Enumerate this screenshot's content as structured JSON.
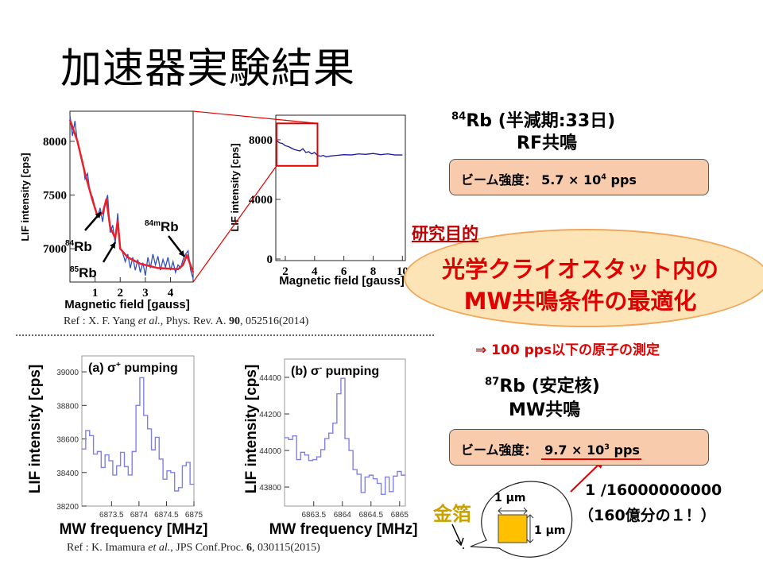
{
  "title": "加速器実験結果",
  "top_left_chart": {
    "type": "line",
    "xlabel": "Magnetic field [gauss]",
    "ylabel": "LIF intensity   [cps]",
    "xlim": [
      0,
      4.9
    ],
    "ylim": [
      6690,
      8280
    ],
    "x_ticks": [
      "1",
      "2",
      "3",
      "4"
    ],
    "x_tick_values": [
      1,
      2,
      3,
      4
    ],
    "y_ticks": [
      "7000",
      "7500",
      "8000"
    ],
    "y_tick_values": [
      7000,
      7500,
      8000
    ],
    "data_color": "#3050c0",
    "fit_color": "#e8202a",
    "data_x": [
      0,
      0.1,
      0.2,
      0.3,
      0.4,
      0.5,
      0.6,
      0.7,
      0.8,
      0.9,
      1.0,
      1.1,
      1.2,
      1.3,
      1.4,
      1.5,
      1.6,
      1.7,
      1.8,
      1.9,
      2.0,
      2.1,
      2.2,
      2.3,
      2.4,
      2.5,
      2.6,
      2.7,
      2.8,
      2.9,
      3.0,
      3.1,
      3.2,
      3.3,
      3.4,
      3.5,
      3.6,
      3.7,
      3.8,
      3.9,
      4.0,
      4.1,
      4.2,
      4.3,
      4.4,
      4.5,
      4.6,
      4.7,
      4.8,
      4.9
    ],
    "data_y": [
      8240,
      8050,
      8190,
      7980,
      7900,
      7820,
      7650,
      7700,
      7520,
      7480,
      7380,
      7300,
      7380,
      7250,
      7420,
      7500,
      7150,
      7220,
      7050,
      7330,
      7010,
      6960,
      6880,
      6950,
      6820,
      6920,
      6800,
      6900,
      6780,
      6870,
      6750,
      6920,
      6820,
      6950,
      6850,
      6930,
      6800,
      6900,
      6830,
      6920,
      6800,
      6880,
      6780,
      6850,
      6820,
      6900,
      6950,
      6980,
      6800,
      6720
    ],
    "fit_x": [
      0,
      0.3,
      0.6,
      0.9,
      1.1,
      1.3,
      1.45,
      1.6,
      1.8,
      1.9,
      2.0,
      2.3,
      2.8,
      3.5,
      4.3,
      4.5,
      4.65,
      4.9
    ],
    "fit_y": [
      8200,
      8000,
      7700,
      7450,
      7300,
      7330,
      7460,
      7200,
      7100,
      7260,
      7000,
      6920,
      6860,
      6820,
      6810,
      6850,
      6940,
      6780
    ],
    "annotations": [
      {
        "sup": "84",
        "text": "Rb"
      },
      {
        "sup": "85",
        "text": "Rb"
      },
      {
        "sup": "84m",
        "text": "Rb"
      }
    ]
  },
  "top_right_chart": {
    "type": "line",
    "xlabel": "Magnetic field [gauss]",
    "ylabel": "LIF intensity   [cps]",
    "xlim": [
      1.35,
      10.2
    ],
    "ylim": [
      -107,
      9650
    ],
    "x_ticks": [
      "2",
      "4",
      "6",
      "8",
      "10"
    ],
    "x_tick_values": [
      2,
      4,
      6,
      8,
      10
    ],
    "y_ticks": [
      "0",
      "4000",
      "8000"
    ],
    "y_tick_values": [
      0,
      4000,
      8000
    ],
    "data_color": "#1a1aa0",
    "data_x": [
      1.4,
      1.6,
      1.8,
      2.0,
      2.2,
      2.4,
      2.6,
      2.8,
      3.0,
      3.2,
      3.4,
      3.6,
      3.8,
      4.0,
      4.2,
      4.4,
      4.6,
      4.8,
      5.0,
      5.5,
      6.0,
      6.5,
      7.0,
      7.5,
      8.0,
      8.5,
      9.0,
      9.5,
      10.0
    ],
    "data_y": [
      7950,
      7800,
      7750,
      7600,
      7550,
      7450,
      7350,
      7300,
      7250,
      7400,
      7150,
      7200,
      7050,
      7150,
      6950,
      6900,
      6950,
      6850,
      6900,
      6950,
      7000,
      6980,
      7050,
      7020,
      7080,
      7000,
      7050,
      6980,
      6980
    ],
    "zoom_box_x": [
      1.4,
      4.2
    ],
    "zoom_box_y": [
      6250,
      9100
    ]
  },
  "top_ref": {
    "prefix": "Ref : X. F. Yang ",
    "etal": "et al.",
    "mid": ", Phys. Rev. A. ",
    "vol": "90",
    "suffix": ", 052516(2014)"
  },
  "bottom_left_chart": {
    "type": "line",
    "label_prefix": "(a) σ",
    "label_sup": "+",
    "label_suffix": " pumping",
    "xlabel": "MW frequency [MHz]",
    "ylabel": "LIF intensity   [cps]",
    "xlim": [
      6872.96,
      6875.0
    ],
    "ylim": [
      38200,
      39095
    ],
    "x_ticks": [
      "6873.5",
      "6874",
      "6874.5",
      "6875"
    ],
    "x_tick_values": [
      6873.5,
      6874,
      6874.5,
      6875
    ],
    "y_ticks": [
      "38200",
      "38400",
      "38600",
      "38800",
      "39000"
    ],
    "y_tick_values": [
      38200,
      38400,
      38600,
      38800,
      39000
    ],
    "data_color": "#8080e8",
    "hist_values": [
      38540,
      38650,
      38620,
      38510,
      38525,
      38430,
      38505,
      38470,
      38385,
      38440,
      38520,
      38435,
      38385,
      38525,
      38800,
      38965,
      38740,
      38660,
      38535,
      38610,
      38480,
      38360,
      38410,
      38400,
      38290,
      38310,
      38440,
      38460,
      38330
    ]
  },
  "bottom_right_chart": {
    "type": "line",
    "label_prefix": "(b) σ",
    "label_sup": "-",
    "label_suffix": " pumping",
    "xlabel": "MW frequency [MHz]",
    "ylabel": "LIF intensity   [cps]",
    "xlim": [
      6862.99,
      6865.1
    ],
    "ylim": [
      43696,
      44500
    ],
    "x_ticks": [
      "6863.5",
      "6864",
      "6864.5",
      "6865"
    ],
    "x_tick_values": [
      6863.5,
      6864,
      6864.5,
      6865
    ],
    "y_ticks": [
      "43800",
      "44000",
      "44200",
      "44400"
    ],
    "y_tick_values": [
      43800,
      44000,
      44200,
      44400
    ],
    "data_color": "#8080e8",
    "hist_values": [
      44070,
      44060,
      44080,
      43950,
      43990,
      43975,
      43945,
      43950,
      43965,
      44005,
      44065,
      44095,
      44150,
      44310,
      44395,
      44065,
      44000,
      43895,
      43870,
      43770,
      43855,
      43865,
      43845,
      43820,
      43760,
      43855,
      43775,
      43860,
      43885,
      43865
    ]
  },
  "bottom_ref": {
    "prefix": "Ref : K. Imamura  ",
    "etal": "et al.",
    "mid": ", JPS Conf.Proc. ",
    "vol": "6",
    "suffix": ", 030115(2015)"
  },
  "rb84": {
    "heading_sup": "84",
    "heading": "Rb (半減期:33日)",
    "sub": "RF共鳴",
    "beam_label": "ビーム強度：",
    "beam_value": "5.7 × 10",
    "beam_exp": "4",
    "beam_unit": " pps"
  },
  "goal": {
    "label": "研究目的",
    "line1": "光学クライオスタット内の",
    "line2": "MW共鳴条件の最適化",
    "consequence": "⇒ 100 pps以下の原子の測定"
  },
  "rb87": {
    "heading_sup": "87",
    "heading": "Rb (安定核)",
    "sub": "MW共鳴",
    "beam_label": "ビーム強度：",
    "beam_value": "9.7 × 10",
    "beam_exp": "3",
    "beam_unit": " pps"
  },
  "ratio": {
    "line1": "1 /16000000000",
    "line2": "（160億分の１！）"
  },
  "gold_foil": {
    "label": "金箔",
    "width": "1 μm",
    "height": "1 μm",
    "color": "#ffc000"
  },
  "colors": {
    "red": "#e00000",
    "dark_red": "#c00000",
    "box": "#f8cbad",
    "gold_text": "#c9a100"
  }
}
